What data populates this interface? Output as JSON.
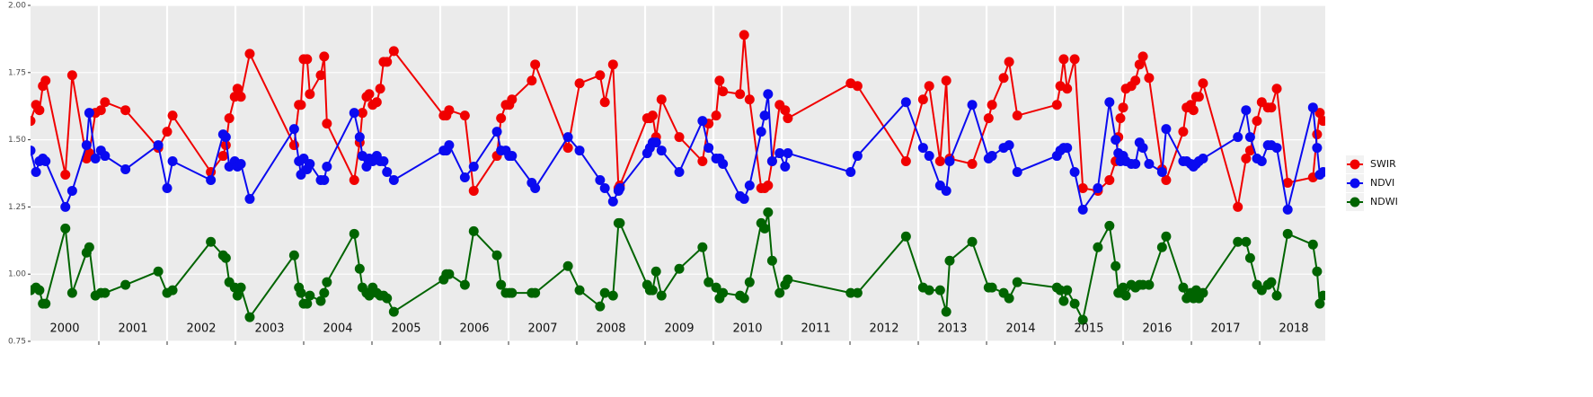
{
  "chart_data": {
    "type": "line",
    "x": [
      2000.0,
      2000.08,
      2000.13,
      2000.18,
      2000.22,
      2000.51,
      2000.61,
      2000.82,
      2000.86,
      2000.95,
      2001.03,
      2001.09,
      2001.39,
      2001.87,
      2002.0,
      2002.08,
      2002.64,
      2002.82,
      2002.86,
      2002.91,
      2002.99,
      2003.03,
      2003.08,
      2003.21,
      2003.86,
      2003.93,
      2003.96,
      2004.0,
      2004.05,
      2004.09,
      2004.25,
      2004.3,
      2004.34,
      2004.74,
      2004.82,
      2004.86,
      2004.92,
      2004.96,
      2005.01,
      2005.07,
      2005.12,
      2005.17,
      2005.22,
      2005.32,
      2006.05,
      2006.09,
      2006.13,
      2006.36,
      2006.49,
      2006.83,
      2006.89,
      2006.96,
      2007.01,
      2007.05,
      2007.34,
      2007.39,
      2007.87,
      2008.04,
      2008.34,
      2008.41,
      2008.53,
      2008.61,
      2008.63,
      2009.03,
      2009.07,
      2009.11,
      2009.16,
      2009.24,
      2009.5,
      2009.84,
      2009.93,
      2010.04,
      2010.09,
      2010.14,
      2010.39,
      2010.45,
      2010.53,
      2010.7,
      2010.75,
      2010.8,
      2010.86,
      2010.97,
      2011.05,
      2011.09,
      2012.01,
      2012.11,
      2012.82,
      2013.07,
      2013.16,
      2013.32,
      2013.41,
      2013.46,
      2013.79,
      2014.03,
      2014.08,
      2014.25,
      2014.33,
      2014.45,
      2015.03,
      2015.08,
      2015.13,
      2015.18,
      2015.29,
      2015.41,
      2015.63,
      2015.8,
      2015.89,
      2015.93,
      2015.96,
      2016.0,
      2016.04,
      2016.12,
      2016.18,
      2016.24,
      2016.29,
      2016.38,
      2016.57,
      2016.63,
      2016.88,
      2016.93,
      2016.99,
      2017.03,
      2017.07,
      2017.11,
      2017.17,
      2017.68,
      2017.8,
      2017.86,
      2017.96,
      2018.03,
      2018.12,
      2018.17,
      2018.25,
      2018.41,
      2018.78,
      2018.84,
      2018.88,
      2018.93
    ],
    "series": [
      {
        "name": "SWIR",
        "color": "#f00000",
        "values": [
          1.57,
          1.63,
          1.61,
          1.7,
          1.72,
          1.37,
          1.74,
          1.43,
          1.45,
          1.6,
          1.61,
          1.64,
          1.61,
          1.47,
          1.53,
          1.59,
          1.38,
          1.44,
          1.48,
          1.58,
          1.66,
          1.69,
          1.66,
          1.82,
          1.48,
          1.63,
          1.63,
          1.8,
          1.8,
          1.67,
          1.74,
          1.81,
          1.56,
          1.35,
          1.49,
          1.6,
          1.66,
          1.67,
          1.63,
          1.64,
          1.69,
          1.79,
          1.79,
          1.83,
          1.59,
          1.59,
          1.61,
          1.59,
          1.31,
          1.44,
          1.58,
          1.63,
          1.63,
          1.65,
          1.72,
          1.78,
          1.47,
          1.71,
          1.74,
          1.64,
          1.78,
          1.32,
          1.33,
          1.58,
          1.58,
          1.59,
          1.51,
          1.65,
          1.51,
          1.42,
          1.56,
          1.59,
          1.72,
          1.68,
          1.67,
          1.89,
          1.65,
          1.32,
          1.32,
          1.33,
          1.42,
          1.63,
          1.61,
          1.58,
          1.71,
          1.7,
          1.42,
          1.65,
          1.7,
          1.42,
          1.72,
          1.43,
          1.41,
          1.58,
          1.63,
          1.73,
          1.79,
          1.59,
          1.63,
          1.7,
          1.8,
          1.69,
          1.8,
          1.32,
          1.31,
          1.35,
          1.42,
          1.51,
          1.58,
          1.62,
          1.69,
          1.7,
          1.72,
          1.78,
          1.81,
          1.73,
          1.39,
          1.35,
          1.53,
          1.62,
          1.63,
          1.61,
          1.66,
          1.66,
          1.71,
          1.25,
          1.43,
          1.46,
          1.57,
          1.64,
          1.62,
          1.62,
          1.69,
          1.34,
          1.36,
          1.52,
          1.6,
          1.57
        ]
      },
      {
        "name": "NDVI",
        "color": "#0a0af0",
        "values": [
          1.46,
          1.38,
          1.42,
          1.43,
          1.42,
          1.25,
          1.31,
          1.48,
          1.6,
          1.43,
          1.46,
          1.44,
          1.39,
          1.48,
          1.32,
          1.42,
          1.35,
          1.52,
          1.51,
          1.4,
          1.42,
          1.4,
          1.41,
          1.28,
          1.54,
          1.42,
          1.37,
          1.43,
          1.39,
          1.41,
          1.35,
          1.35,
          1.4,
          1.6,
          1.51,
          1.44,
          1.4,
          1.43,
          1.42,
          1.44,
          1.42,
          1.42,
          1.38,
          1.35,
          1.46,
          1.46,
          1.48,
          1.36,
          1.4,
          1.53,
          1.46,
          1.46,
          1.44,
          1.44,
          1.34,
          1.32,
          1.51,
          1.46,
          1.35,
          1.32,
          1.27,
          1.31,
          1.32,
          1.45,
          1.47,
          1.49,
          1.49,
          1.46,
          1.38,
          1.57,
          1.47,
          1.43,
          1.43,
          1.41,
          1.29,
          1.28,
          1.33,
          1.53,
          1.59,
          1.67,
          1.42,
          1.45,
          1.4,
          1.45,
          1.38,
          1.44,
          1.64,
          1.47,
          1.44,
          1.33,
          1.31,
          1.42,
          1.63,
          1.43,
          1.44,
          1.47,
          1.48,
          1.38,
          1.44,
          1.46,
          1.47,
          1.47,
          1.38,
          1.24,
          1.32,
          1.64,
          1.5,
          1.45,
          1.42,
          1.44,
          1.42,
          1.41,
          1.41,
          1.49,
          1.47,
          1.41,
          1.38,
          1.54,
          1.42,
          1.42,
          1.41,
          1.4,
          1.41,
          1.42,
          1.43,
          1.51,
          1.61,
          1.51,
          1.43,
          1.42,
          1.48,
          1.48,
          1.47,
          1.24,
          1.62,
          1.47,
          1.37,
          1.38
        ]
      },
      {
        "name": "NDWI",
        "color": "#006400",
        "values": [
          0.94,
          0.95,
          0.94,
          0.89,
          0.89,
          1.17,
          0.93,
          1.08,
          1.1,
          0.92,
          0.93,
          0.93,
          0.96,
          1.01,
          0.93,
          0.94,
          1.12,
          1.07,
          1.06,
          0.97,
          0.95,
          0.92,
          0.95,
          0.84,
          1.07,
          0.95,
          0.93,
          0.89,
          0.89,
          0.92,
          0.9,
          0.93,
          0.97,
          1.15,
          1.02,
          0.95,
          0.93,
          0.92,
          0.95,
          0.93,
          0.92,
          0.92,
          0.91,
          0.86,
          0.98,
          1.0,
          1.0,
          0.96,
          1.16,
          1.07,
          0.96,
          0.93,
          0.93,
          0.93,
          0.93,
          0.93,
          1.03,
          0.94,
          0.88,
          0.93,
          0.92,
          1.19,
          1.19,
          0.96,
          0.94,
          0.94,
          1.01,
          0.92,
          1.02,
          1.1,
          0.97,
          0.95,
          0.91,
          0.93,
          0.92,
          0.91,
          0.97,
          1.19,
          1.17,
          1.23,
          1.05,
          0.93,
          0.96,
          0.98,
          0.93,
          0.93,
          1.14,
          0.95,
          0.94,
          0.94,
          0.86,
          1.05,
          1.12,
          0.95,
          0.95,
          0.93,
          0.91,
          0.97,
          0.95,
          0.94,
          0.9,
          0.94,
          0.89,
          0.83,
          1.1,
          1.18,
          1.03,
          0.93,
          0.93,
          0.95,
          0.92,
          0.96,
          0.95,
          0.96,
          0.96,
          0.96,
          1.1,
          1.14,
          0.95,
          0.91,
          0.93,
          0.91,
          0.94,
          0.91,
          0.93,
          1.12,
          1.12,
          1.06,
          0.96,
          0.94,
          0.96,
          0.97,
          0.92,
          1.15,
          1.11,
          1.01,
          0.89,
          0.92
        ]
      }
    ],
    "xlim": [
      2000,
      2018.96
    ],
    "xticks": [
      {
        "value": 2000.5,
        "label": "2000"
      },
      {
        "value": 2001.5,
        "label": "2001"
      },
      {
        "value": 2002.5,
        "label": "2002"
      },
      {
        "value": 2003.5,
        "label": "2003"
      },
      {
        "value": 2004.5,
        "label": "2004"
      },
      {
        "value": 2005.5,
        "label": "2005"
      },
      {
        "value": 2006.5,
        "label": "2006"
      },
      {
        "value": 2007.5,
        "label": "2007"
      },
      {
        "value": 2008.5,
        "label": "2008"
      },
      {
        "value": 2009.5,
        "label": "2009"
      },
      {
        "value": 2010.5,
        "label": "2010"
      },
      {
        "value": 2011.5,
        "label": "2011"
      },
      {
        "value": 2012.5,
        "label": "2012"
      },
      {
        "value": 2013.5,
        "label": "2013"
      },
      {
        "value": 2014.5,
        "label": "2014"
      },
      {
        "value": 2015.5,
        "label": "2015"
      },
      {
        "value": 2016.5,
        "label": "2016"
      },
      {
        "value": 2017.5,
        "label": "2017"
      },
      {
        "value": 2018.5,
        "label": "2018"
      }
    ],
    "xgrid": [
      2001,
      2002,
      2003,
      2004,
      2005,
      2006,
      2007,
      2008,
      2009,
      2010,
      2011,
      2012,
      2013,
      2014,
      2015,
      2016,
      2017,
      2018
    ],
    "ylim": [
      0.75,
      2.0
    ],
    "yticks": [
      {
        "value": 0.75,
        "label": "0.75"
      },
      {
        "value": 1.0,
        "label": "1.00"
      },
      {
        "value": 1.25,
        "label": "1.25"
      },
      {
        "value": 1.5,
        "label": "1.50"
      },
      {
        "value": 1.75,
        "label": "1.75"
      },
      {
        "value": 2.0,
        "label": "2.00"
      }
    ],
    "grid": true,
    "legend": "right"
  }
}
